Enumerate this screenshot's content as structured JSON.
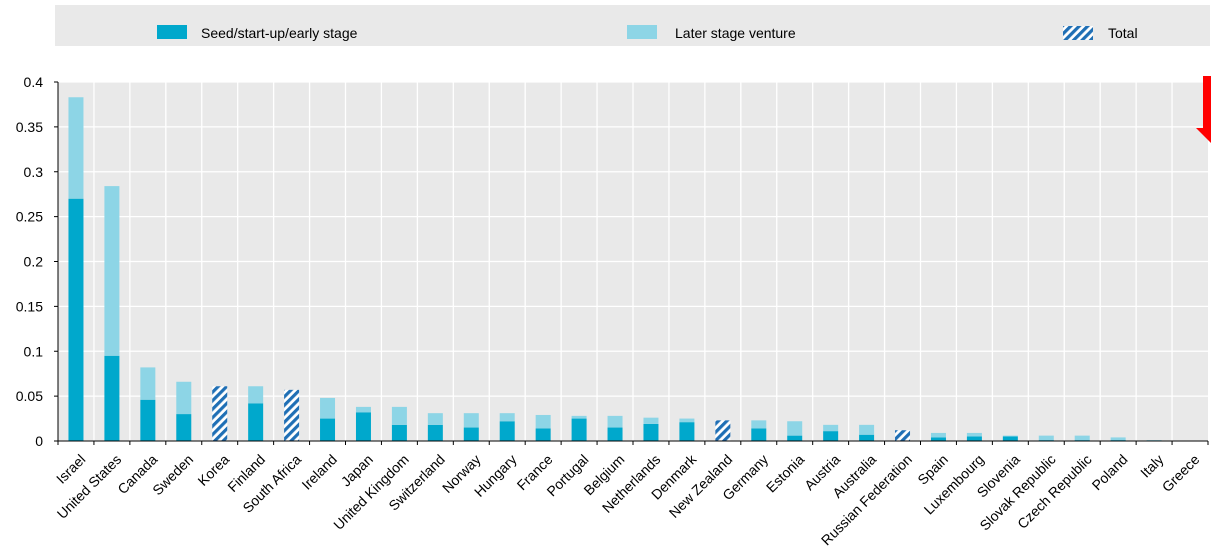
{
  "chart_data": {
    "type": "bar",
    "stacked": true,
    "categories": [
      "Israel",
      "United States",
      "Canada",
      "Sweden",
      "Korea",
      "Finland",
      "South Africa",
      "Ireland",
      "Japan",
      "United Kingdom",
      "Switzerland",
      "Norway",
      "Hungary",
      "France",
      "Portugal",
      "Belgium",
      "Netherlands",
      "Denmark",
      "New Zealand",
      "Germany",
      "Estonia",
      "Austria",
      "Australia",
      "Russian Federation",
      "Spain",
      "Luxembourg",
      "Slovenia",
      "Slovak Republic",
      "Czech Republic",
      "Poland",
      "Italy",
      "Greece"
    ],
    "series": [
      {
        "name": "Seed/start-up/early stage",
        "color": "#00a8cc",
        "values": [
          0.27,
          0.095,
          0.046,
          0.03,
          null,
          0.042,
          null,
          0.025,
          0.032,
          0.018,
          0.018,
          0.015,
          0.022,
          0.014,
          0.025,
          0.015,
          0.019,
          0.021,
          null,
          0.014,
          0.006,
          0.011,
          0.007,
          null,
          0.004,
          0.005,
          0.005,
          0.001,
          0.001,
          0.001,
          0.0005,
          0.0
        ]
      },
      {
        "name": "Later stage venture",
        "color": "#8dd5e6",
        "values": [
          0.113,
          0.189,
          0.036,
          0.036,
          null,
          0.019,
          null,
          0.023,
          0.006,
          0.02,
          0.013,
          0.016,
          0.009,
          0.015,
          0.003,
          0.013,
          0.007,
          0.004,
          null,
          0.009,
          0.016,
          0.007,
          0.011,
          null,
          0.005,
          0.004,
          0.001,
          0.005,
          0.005,
          0.003,
          0.0005,
          0.0
        ]
      },
      {
        "name": "Total",
        "color": "#1f6fb5",
        "pattern": "hatched",
        "values": [
          null,
          null,
          null,
          null,
          0.061,
          null,
          0.057,
          null,
          null,
          null,
          null,
          null,
          null,
          null,
          null,
          null,
          null,
          null,
          0.023,
          null,
          null,
          null,
          null,
          0.012,
          null,
          null,
          null,
          null,
          null,
          null,
          null,
          null
        ]
      }
    ],
    "y_ticks": [
      "0",
      "0.05",
      "0.1",
      "0.15",
      "0.2",
      "0.25",
      "0.3",
      "0.35",
      "0.4"
    ],
    "ylim": [
      0,
      0.4
    ],
    "grid": true,
    "legend_position": "top",
    "annotation": {
      "type": "red-down-arrow",
      "color": "#ff0000",
      "description": "off-scale value"
    }
  }
}
